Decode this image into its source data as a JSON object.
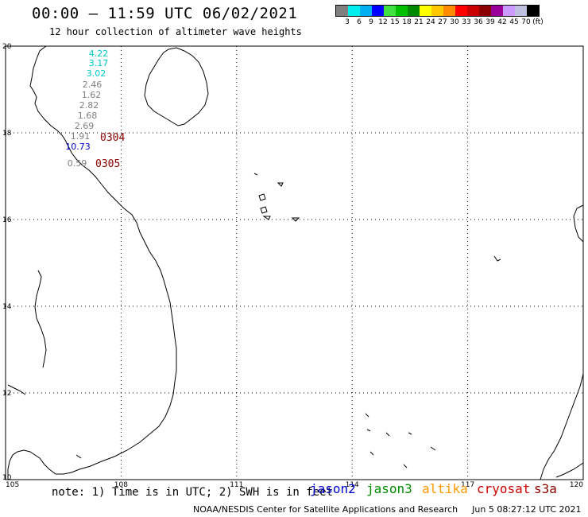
{
  "header": {
    "title": "00:00 – 11:59 UTC 06/02/2021",
    "subtitle": "12 hour collection of altimeter wave heights"
  },
  "legend": {
    "colors": [
      "#7f7f7f",
      "#00eeee",
      "#00b0f0",
      "#0000ff",
      "#40e040",
      "#00c000",
      "#008800",
      "#ffff00",
      "#ffc800",
      "#ff8c00",
      "#ff0000",
      "#c80000",
      "#8b0000",
      "#990099",
      "#cc99ff",
      "#c0c0e0",
      "#000000"
    ],
    "labels": [
      "3",
      "6",
      "9",
      "12",
      "15",
      "18",
      "21",
      "24",
      "27",
      "30",
      "33",
      "36",
      "39",
      "42",
      "45",
      "70",
      "(ft)"
    ],
    "unit": "(ft)"
  },
  "axes": {
    "lon_ticks": [
      "105",
      "108",
      "111",
      "114",
      "117",
      "120"
    ],
    "lat_ticks": [
      "10",
      "12",
      "14",
      "16",
      "18",
      "20"
    ]
  },
  "observations": [
    {
      "value": "4.22",
      "color": "#00c8c8"
    },
    {
      "value": "3.17",
      "color": "#00c8c8"
    },
    {
      "value": "3.02",
      "color": "#00c8c8"
    },
    {
      "value": "2.46",
      "color": "#7f7f7f"
    },
    {
      "value": "1.62",
      "color": "#7f7f7f"
    },
    {
      "value": "2.82",
      "color": "#7f7f7f"
    },
    {
      "value": "1.68",
      "color": "#7f7f7f"
    },
    {
      "value": "2.69",
      "color": "#7f7f7f"
    },
    {
      "value": "1.91",
      "color": "#7f7f7f"
    },
    {
      "value": "10.73",
      "color": "#0000cc"
    },
    {
      "value": "0.59",
      "color": "#7f7f7f"
    }
  ],
  "pass_labels": [
    {
      "value": "0304",
      "color": "#8b0000"
    },
    {
      "value": "0305",
      "color": "#8b0000"
    }
  ],
  "footer": {
    "note": "note: 1) Time is in UTC; 2) SWH is in feet",
    "missions": [
      {
        "name": "jason2",
        "color": "#0000cc"
      },
      {
        "name": "jason3",
        "color": "#008800"
      },
      {
        "name": "altika",
        "color": "#ff9900"
      },
      {
        "name": "cryosat",
        "color": "#cc0000"
      },
      {
        "name": "s3a",
        "color": "#8b0000"
      }
    ],
    "credit": "NOAA/NESDIS Center for Satellite Applications and Research",
    "timestamp": "Jun  5 08:27:12 UTC 2021"
  }
}
